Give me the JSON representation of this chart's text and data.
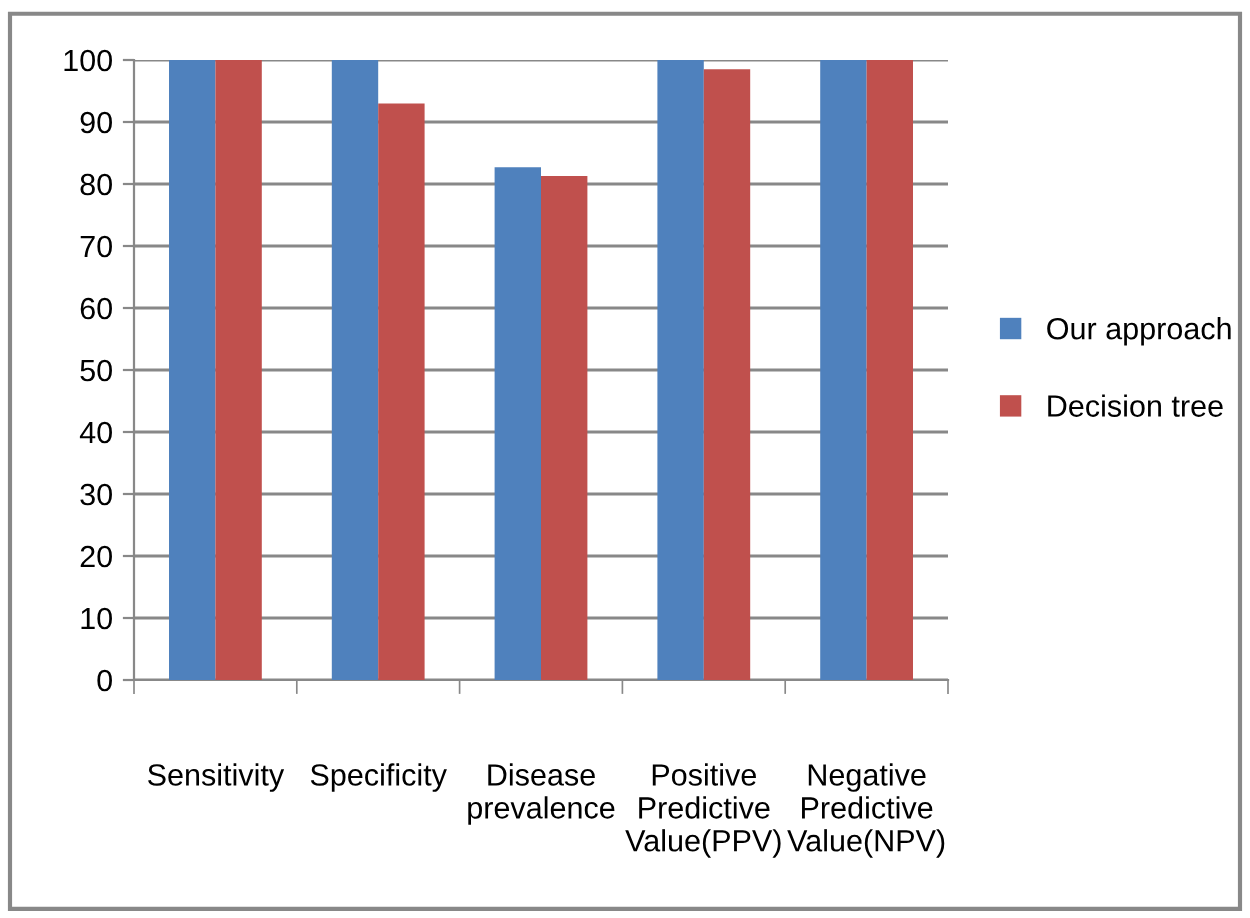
{
  "chart_data": {
    "type": "bar",
    "categories": [
      "Sensitivity",
      "Specificity",
      "Disease\nprevalence",
      "Positive\nPredictive\nValue(PPV)",
      "Negative\nPredictive\nValue(NPV)"
    ],
    "series": [
      {
        "name": "Our approach",
        "color": "#4f81bd",
        "values": [
          100,
          100,
          82.7,
          100,
          100
        ]
      },
      {
        "name": "Decision tree",
        "color": "#c0504d",
        "values": [
          100,
          93,
          81.3,
          98.5,
          100
        ]
      }
    ],
    "ylim": [
      0,
      100
    ],
    "yticks": [
      0,
      10,
      20,
      30,
      40,
      50,
      60,
      70,
      80,
      90,
      100
    ],
    "grid": "y",
    "legend": "right"
  }
}
